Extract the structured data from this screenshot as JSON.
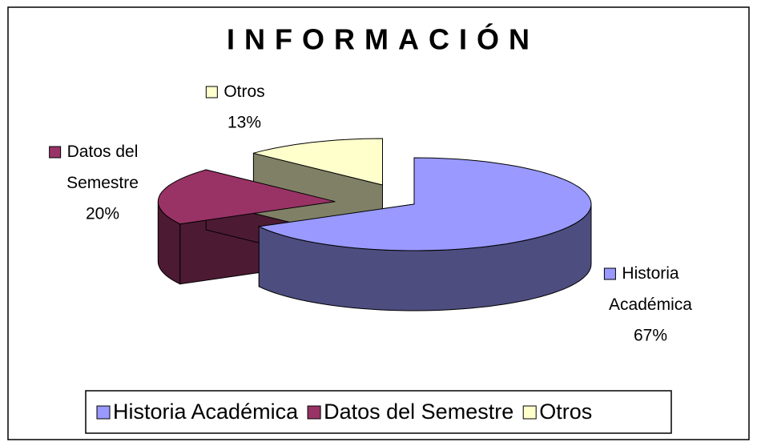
{
  "chart_data": {
    "type": "pie3d",
    "title": "INFORMACIÓN",
    "categories": [
      "Historia Académica",
      "Datos del Semestre",
      "Otros"
    ],
    "values": [
      67,
      20,
      13
    ],
    "value_labels": [
      "67%",
      "20%",
      "13%"
    ],
    "colors": [
      "#9999ff",
      "#993366",
      "#ffffcc"
    ],
    "legend": "bottom"
  }
}
